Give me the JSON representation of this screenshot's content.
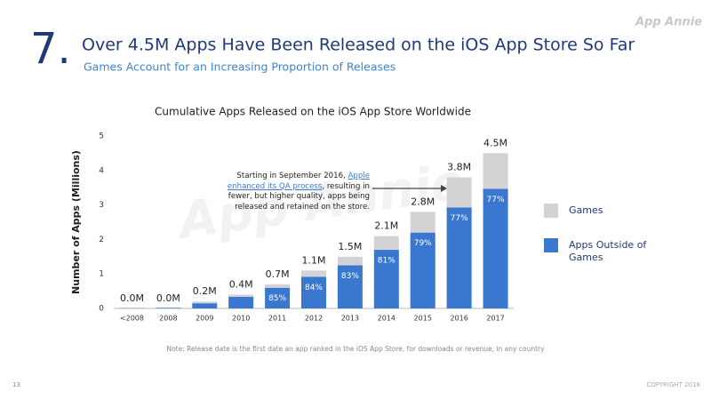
{
  "header": {
    "number": "7.",
    "title": "Over 4.5M Apps Have Been Released on the iOS App Store So Far",
    "subtitle": "Games Account for an Increasing Proportion of Releases",
    "logo": "App Annie"
  },
  "chart_data": {
    "type": "stacked_bar",
    "title": "Cumulative Apps Released on the iOS App Store Worldwide",
    "y_label": "Number of Apps (Millions)",
    "watermark": "App Annie",
    "categories": [
      "<2008",
      "2008",
      "2009",
      "2010",
      "2011",
      "2012",
      "2013",
      "2014",
      "2015",
      "2016",
      "2017"
    ],
    "series": [
      {
        "name": "Games",
        "color": "#d3d3d5",
        "values": [
          0.0,
          0.01,
          0.05,
          0.06,
          0.1,
          0.18,
          0.25,
          0.4,
          0.6,
          0.87,
          1.03
        ]
      },
      {
        "name": "Apps Outside of Games",
        "color": "#3a78d0",
        "values": [
          0.01,
          0.02,
          0.15,
          0.34,
          0.6,
          0.92,
          1.25,
          1.7,
          2.2,
          2.93,
          3.47
        ]
      }
    ],
    "totals": [
      {
        "value": 0,
        "label": "0.0M"
      },
      {
        "value": 0,
        "label": "0.0M"
      },
      {
        "value": 0.2,
        "label": "0.2M"
      },
      {
        "value": 0.4,
        "label": "0.4M"
      },
      {
        "value": 0.7,
        "label": "0.7M"
      },
      {
        "value": 1.1,
        "label": "1.1M"
      },
      {
        "value": 1.5,
        "label": "1.5M"
      },
      {
        "value": 2.1,
        "label": "2.1M"
      },
      {
        "value": 2.8,
        "label": "2.8M"
      },
      {
        "value": 3.8,
        "label": "3.8M"
      },
      {
        "value": 4.5,
        "label": "4.5M"
      }
    ],
    "shares": [
      null,
      null,
      null,
      null,
      {
        "value": 85,
        "label": "85%"
      },
      {
        "value": 84,
        "label": "84%"
      },
      {
        "value": 83,
        "label": "83%"
      },
      {
        "value": 81,
        "label": "81%"
      },
      {
        "value": 79,
        "label": "79%"
      },
      {
        "value": 77,
        "label": "77%"
      },
      {
        "value": 77,
        "label": "77%"
      }
    ],
    "ylim": [
      0,
      5
    ],
    "yticks": [
      0,
      1,
      2,
      3,
      4,
      5
    ],
    "annotation": {
      "before": "Starting in September 2016, ",
      "link": "Apple enhanced its QA process",
      "after": ", resulting in fewer, but higher quality, apps being released and retained on the store."
    }
  },
  "footer": {
    "note": "Note: Release date is the first date an app ranked in the iOS App Store, for downloads or revenue, in any country",
    "page": "13",
    "copyright": "COPYRIGHT 2018"
  }
}
